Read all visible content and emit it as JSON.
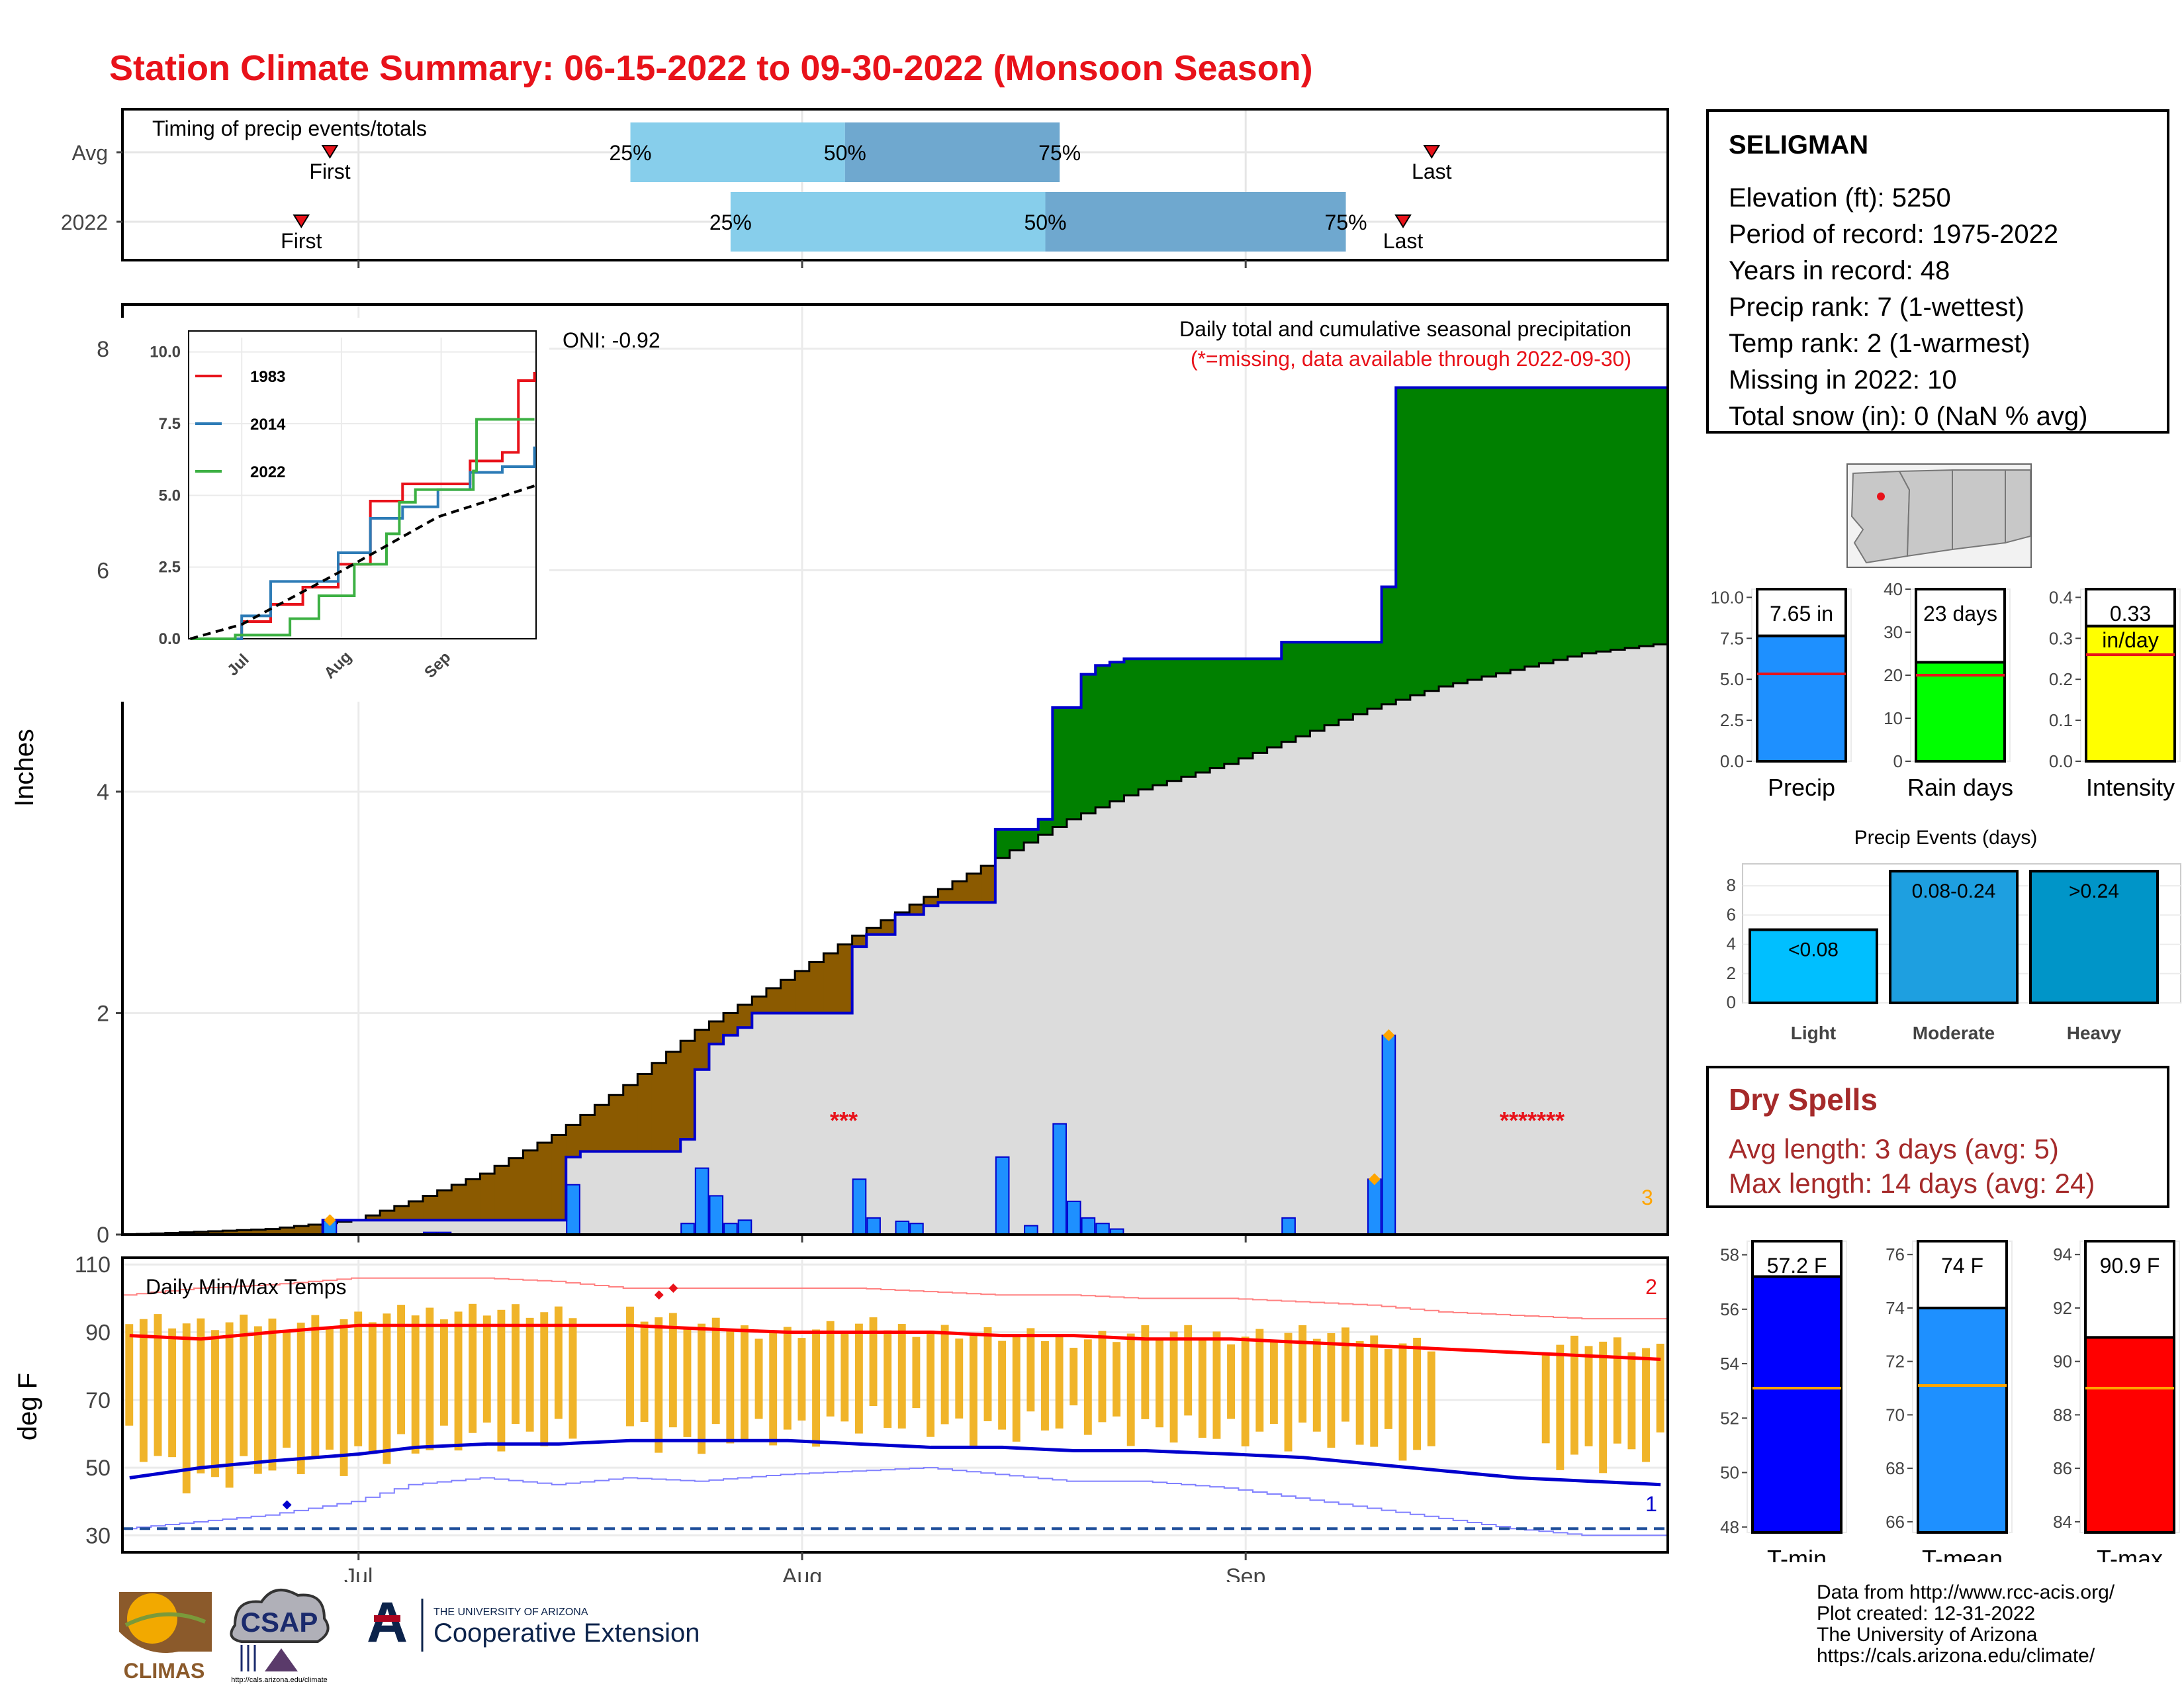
{
  "title": "Station Climate Summary: 06-15-2022 to 09-30-2022 (Monsoon Season)",
  "timing": {
    "label": "Timing of precip events/totals",
    "rows": [
      {
        "name": "Avg",
        "first": "06-29",
        "last": "09-14",
        "q25": "07-20",
        "q50": "08-04",
        "q75": "08-19"
      },
      {
        "name": "2022",
        "first": "06-27",
        "last": "09-12",
        "q25": "07-27",
        "q50": "08-18",
        "q75": "09-08"
      }
    ],
    "first_label": "First",
    "last_label": "Last",
    "q_labels": [
      "25%",
      "50%",
      "75%"
    ],
    "colors": {
      "lower": "#87ceeb",
      "upper": "#6fa8cf",
      "marker": "#e8121a"
    }
  },
  "station": {
    "name": "SELIGMAN",
    "lines": [
      "Elevation (ft): 5250",
      "Period of record: 1975-2022",
      "Years in record: 48",
      "Precip rank: 7 (1-wettest)",
      "Temp rank: 2 (1-warmest)",
      "Missing in 2022: 10",
      "Total snow (in): 0 (NaN % avg)"
    ]
  },
  "main": {
    "ylabel": "Inches",
    "note1": "Daily total and cumulative seasonal precipitation",
    "note2": "(*=missing, data available through 2022-09-30)",
    "oni": "ONI: -0.92",
    "missing_marks": [
      "***",
      "*******"
    ],
    "count_label": "3",
    "colors": {
      "wet": "#008000",
      "dry": "#8b5a00",
      "normal": "#dcdcdc",
      "obs_line": "#0000cd",
      "bar": "#1e90ff"
    }
  },
  "month_labels": [
    "Jul",
    "Aug",
    "Sep"
  ],
  "inset": {
    "legend": [
      "1983",
      "2014",
      "2022"
    ],
    "colors": [
      "#e8121a",
      "#2c7bb6",
      "#3cb043"
    ]
  },
  "temps": {
    "label": "Daily Min/Max Temps",
    "ylabel": "deg F",
    "max_record_count": "2",
    "min_record_count": "1"
  },
  "small_bars": [
    {
      "label": "Precip",
      "value_text": "7.65 in",
      "color": "#1e90ff"
    },
    {
      "label": "Rain days",
      "value_text": "23 days",
      "color": "#00ff00"
    },
    {
      "label": "Intensity",
      "value_text": "0.33 in/day",
      "color": "#ffff00"
    }
  ],
  "events": {
    "title": "Precip Events (days)",
    "labels": [
      "Light",
      "Moderate",
      "Heavy"
    ],
    "ranges": [
      "<0.08",
      "0.08-0.24",
      ">0.24"
    ],
    "colors": [
      "#00bfff",
      "#1e9fe0",
      "#0095c8"
    ]
  },
  "temp_bars": [
    {
      "label": "T-min",
      "value_text": "57.2 F",
      "color": "#0000ff"
    },
    {
      "label": "T-mean",
      "value_text": "74 F",
      "color": "#1e90ff"
    },
    {
      "label": "T-max",
      "value_text": "90.9 F",
      "color": "#ff0000"
    }
  ],
  "dry_spells": {
    "title": "Dry Spells",
    "avg": "Avg length: 3 days (avg: 5)",
    "max": "Max length: 14 days (avg: 24)"
  },
  "credits": [
    "Data from http://www.rcc-acis.org/",
    "Plot created: 12-31-2022",
    "The University of Arizona",
    "https://cals.arizona.edu/climate/"
  ],
  "logos": {
    "climas": "CLIMAS",
    "csap": "CSAP",
    "csap_url": "http://cals.arizona.edu/climate",
    "ua_top": "THE UNIVERSITY OF ARIZONA",
    "ua_bottom": "Cooperative Extension",
    "ua_mark": "A"
  },
  "chart_data": [
    {
      "type": "area",
      "name": "cumulative_precip",
      "xlabel": "",
      "ylabel": "Inches",
      "x_start": "2022-06-15",
      "x_end": "2022-09-30",
      "ylim": [
        0,
        8.4
      ],
      "yticks": [
        0,
        2,
        4,
        6,
        8
      ],
      "normal_cumulative": {
        "x": [
          "06-15",
          "06-25",
          "07-01",
          "07-05",
          "07-10",
          "07-15",
          "07-20",
          "07-25",
          "07-31",
          "08-05",
          "08-10",
          "08-15",
          "08-20",
          "08-25",
          "08-31",
          "09-05",
          "09-10",
          "09-15",
          "09-20",
          "09-25",
          "09-30"
        ],
        "y": [
          0.0,
          0.05,
          0.13,
          0.3,
          0.55,
          0.9,
          1.35,
          1.85,
          2.3,
          2.7,
          3.05,
          3.4,
          3.75,
          4.02,
          4.25,
          4.5,
          4.75,
          4.95,
          5.1,
          5.25,
          5.33
        ]
      },
      "observed_cumulative": {
        "x": [
          "06-15",
          "06-29",
          "07-06",
          "07-07",
          "07-16",
          "07-17",
          "07-24",
          "07-25",
          "07-26",
          "07-27",
          "07-28",
          "07-29",
          "08-05",
          "08-06",
          "08-07",
          "08-08",
          "08-10",
          "08-11",
          "08-15",
          "08-16",
          "08-18",
          "08-19",
          "08-21",
          "08-22",
          "08-23",
          "08-24",
          "09-04",
          "09-10",
          "09-11",
          "09-12",
          "09-30"
        ],
        "y": [
          0.0,
          0.13,
          0.13,
          0.13,
          0.7,
          0.75,
          0.86,
          1.49,
          1.72,
          1.8,
          1.87,
          2.0,
          2.6,
          2.71,
          2.71,
          2.89,
          2.97,
          3.0,
          3.66,
          3.66,
          3.75,
          4.76,
          5.06,
          5.14,
          5.17,
          5.2,
          5.35,
          5.35,
          5.85,
          7.65,
          7.65
        ]
      },
      "daily_precip": {
        "x": [
          "06-29",
          "07-06",
          "07-07",
          "07-16",
          "07-24",
          "07-25",
          "07-26",
          "07-27",
          "07-28",
          "08-05",
          "08-06",
          "08-08",
          "08-09",
          "08-15",
          "08-17",
          "08-19",
          "08-20",
          "08-21",
          "08-22",
          "08-23",
          "09-04",
          "09-10",
          "09-11"
        ],
        "y": [
          0.13,
          0.02,
          0.02,
          0.45,
          0.1,
          0.6,
          0.35,
          0.1,
          0.13,
          0.5,
          0.15,
          0.12,
          0.1,
          0.7,
          0.08,
          1.0,
          0.3,
          0.15,
          0.1,
          0.05,
          0.15,
          0.5,
          1.8
        ]
      },
      "missing_days": [
        "07-17",
        "07-18",
        "07-19",
        "09-15",
        "09-16",
        "09-17",
        "09-18",
        "09-19",
        "09-20",
        "09-21"
      ]
    },
    {
      "type": "line",
      "name": "inset_cumulative_years",
      "x_ticks": [
        "Jul",
        "Aug",
        "Sep"
      ],
      "ylim": [
        0,
        10.5
      ],
      "yticks": [
        0.0,
        2.5,
        5.0,
        7.5,
        10.0
      ],
      "series": [
        {
          "name": "1983",
          "x": [
            "06-15",
            "07-01",
            "07-10",
            "07-20",
            "07-31",
            "08-10",
            "08-20",
            "08-31",
            "09-10",
            "09-20",
            "09-25",
            "09-30"
          ],
          "y": [
            0,
            0.6,
            1.2,
            1.8,
            2.6,
            4.8,
            5.4,
            5.4,
            6.2,
            6.5,
            9.0,
            9.3
          ]
        },
        {
          "name": "2014",
          "x": [
            "06-15",
            "07-01",
            "07-10",
            "07-20",
            "07-31",
            "08-10",
            "08-20",
            "08-31",
            "09-10",
            "09-20",
            "09-30"
          ],
          "y": [
            0,
            0.8,
            2.0,
            2.0,
            3.0,
            4.2,
            4.6,
            5.2,
            5.8,
            6.0,
            6.7
          ]
        },
        {
          "name": "2022",
          "x": [
            "06-15",
            "06-29",
            "07-16",
            "07-25",
            "08-05",
            "08-15",
            "08-19",
            "08-24",
            "09-11",
            "09-12",
            "09-30"
          ],
          "y": [
            0,
            0.13,
            0.7,
            1.5,
            2.6,
            3.66,
            4.76,
            5.2,
            5.85,
            7.65,
            7.65
          ]
        },
        {
          "name": "Avg",
          "x": [
            "06-15",
            "07-01",
            "07-31",
            "08-31",
            "09-30"
          ],
          "y": [
            0,
            0.5,
            2.3,
            4.25,
            5.33
          ]
        }
      ]
    },
    {
      "type": "bar",
      "name": "daily_temps",
      "ylabel": "deg F",
      "ylim": [
        25,
        112
      ],
      "yticks": [
        30,
        50,
        70,
        90,
        110
      ],
      "freezing_line": 32,
      "x": [
        "06-15",
        "06-20",
        "06-25",
        "07-01",
        "07-05",
        "07-10",
        "07-15",
        "07-20",
        "07-25",
        "07-31",
        "08-05",
        "08-10",
        "08-15",
        "08-20",
        "08-25",
        "08-31",
        "09-05",
        "09-10",
        "09-15",
        "09-20",
        "09-25",
        "09-30"
      ],
      "tmax": [
        95,
        92,
        93,
        94,
        96,
        97,
        95,
        96,
        92,
        90,
        92,
        91,
        89,
        88,
        90,
        89,
        90,
        88,
        86,
        85,
        88,
        84
      ],
      "tmin": [
        52,
        40,
        45,
        48,
        50,
        55,
        54,
        56,
        52,
        55,
        58,
        57,
        55,
        58,
        56,
        54,
        55,
        52,
        47,
        46,
        48,
        50
      ],
      "avg_max": [
        89,
        88,
        90,
        92,
        92,
        92,
        92,
        92,
        91,
        90,
        90,
        90,
        89,
        89,
        88,
        88,
        87,
        86,
        85,
        84,
        83,
        82
      ],
      "avg_min": [
        47,
        50,
        52,
        54,
        56,
        57,
        57,
        58,
        58,
        58,
        57,
        56,
        56,
        55,
        55,
        54,
        53,
        51,
        49,
        47,
        46,
        45
      ],
      "record_max": [
        101,
        103,
        104,
        106,
        106,
        106,
        105,
        103,
        103,
        103,
        103,
        102,
        101,
        101,
        100,
        100,
        99,
        98,
        96,
        95,
        94,
        94
      ],
      "record_min": [
        32,
        34,
        36,
        40,
        45,
        47,
        45,
        47,
        46,
        48,
        49,
        50,
        48,
        46,
        46,
        44,
        41,
        38,
        35,
        32,
        30,
        30
      ]
    },
    {
      "type": "bar",
      "name": "total_precip",
      "categories": [
        "Precip"
      ],
      "values": [
        7.65
      ],
      "avg": 5.33,
      "ylim": [
        0,
        10.5
      ],
      "yticks": [
        0.0,
        2.5,
        5.0,
        7.5,
        10.0
      ]
    },
    {
      "type": "bar",
      "name": "rain_days",
      "categories": [
        "Rain days"
      ],
      "values": [
        23
      ],
      "avg": 20,
      "ylim": [
        0,
        40
      ],
      "yticks": [
        0,
        10,
        20,
        30,
        40
      ]
    },
    {
      "type": "bar",
      "name": "intensity",
      "categories": [
        "Intensity"
      ],
      "values": [
        0.33
      ],
      "avg": 0.26,
      "ylim": [
        0,
        0.42
      ],
      "yticks": [
        0.0,
        0.1,
        0.2,
        0.3,
        0.4
      ]
    },
    {
      "type": "bar",
      "name": "precip_events",
      "title": "Precip Events (days)",
      "categories": [
        "Light",
        "Moderate",
        "Heavy"
      ],
      "values": [
        5,
        9,
        9
      ],
      "ylim": [
        0,
        9.5
      ],
      "yticks": [
        0,
        2,
        4,
        6,
        8
      ]
    },
    {
      "type": "bar",
      "name": "tmin_mean",
      "categories": [
        "T-min"
      ],
      "values": [
        57.2
      ],
      "avg": 53.1,
      "ylim": [
        47.8,
        58.5
      ],
      "yticks": [
        48,
        50,
        52,
        54,
        56,
        58
      ]
    },
    {
      "type": "bar",
      "name": "tmean_mean",
      "categories": [
        "T-mean"
      ],
      "values": [
        74
      ],
      "avg": 71.1,
      "ylim": [
        65.6,
        76.5
      ],
      "yticks": [
        66,
        68,
        70,
        72,
        74,
        76
      ]
    },
    {
      "type": "bar",
      "name": "tmax_mean",
      "categories": [
        "T-max"
      ],
      "values": [
        90.9
      ],
      "avg": 89.0,
      "ylim": [
        83.6,
        94.5
      ],
      "yticks": [
        84,
        86,
        88,
        90,
        92,
        94
      ]
    }
  ]
}
